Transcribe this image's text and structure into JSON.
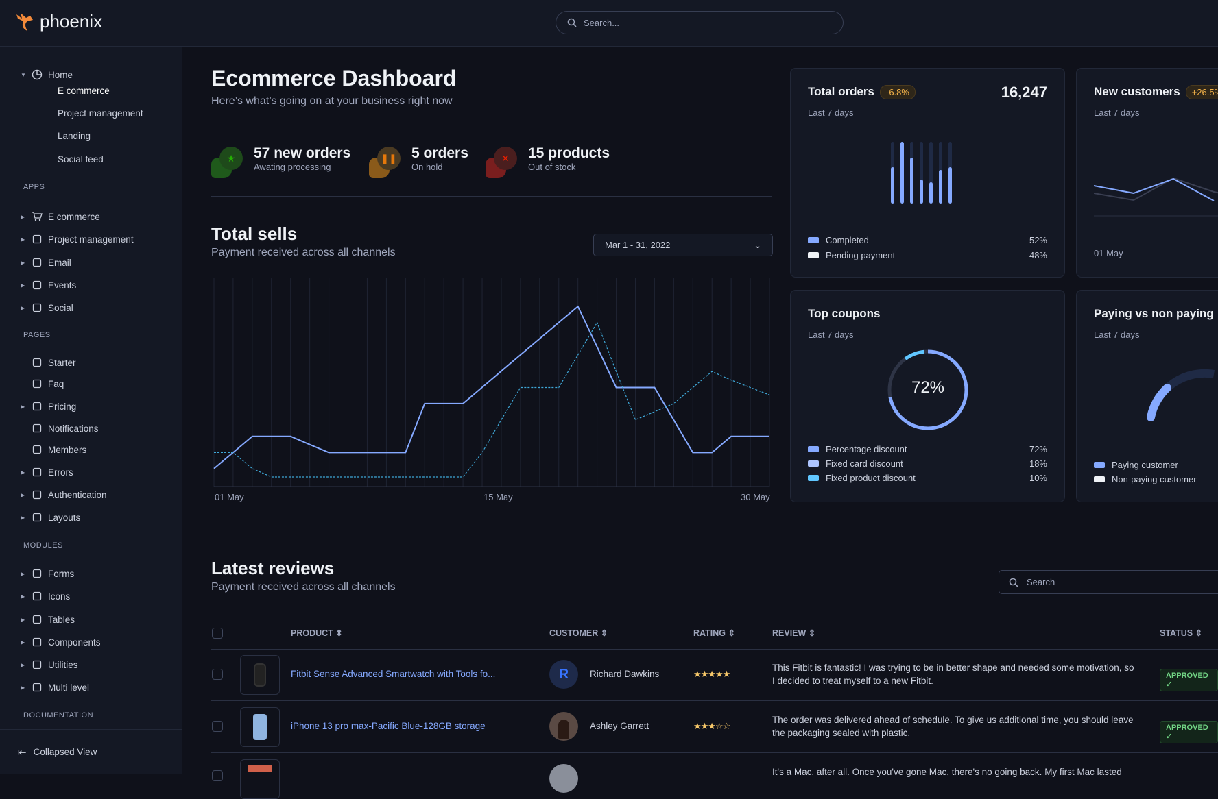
{
  "app": {
    "name": "phoenix"
  },
  "search": {
    "placeholder": "Search..."
  },
  "sidebar": {
    "home": {
      "label": "Home",
      "children": [
        "E commerce",
        "Project management",
        "Landing",
        "Social feed"
      ]
    },
    "sections": [
      {
        "title": "APPS",
        "items": [
          {
            "label": "E commerce",
            "icon": "cart-icon"
          },
          {
            "label": "Project management",
            "icon": "clipboard-icon"
          },
          {
            "label": "Email",
            "icon": "mail-icon"
          },
          {
            "label": "Events",
            "icon": "clipboard-icon"
          },
          {
            "label": "Social",
            "icon": "share-icon"
          }
        ]
      },
      {
        "title": "PAGES",
        "items": [
          {
            "label": "Starter",
            "icon": "compass-icon"
          },
          {
            "label": "Faq",
            "icon": "help-icon"
          },
          {
            "label": "Pricing",
            "icon": "tag-icon"
          },
          {
            "label": "Notifications",
            "icon": "bell-icon"
          },
          {
            "label": "Members",
            "icon": "users-icon"
          },
          {
            "label": "Errors",
            "icon": "alert-icon"
          },
          {
            "label": "Authentication",
            "icon": "lock-icon"
          },
          {
            "label": "Layouts",
            "icon": "layout-icon"
          }
        ]
      },
      {
        "title": "MODULES",
        "items": [
          {
            "label": "Forms",
            "icon": "file-icon"
          },
          {
            "label": "Icons",
            "icon": "grid-icon"
          },
          {
            "label": "Tables",
            "icon": "columns-icon"
          },
          {
            "label": "Components",
            "icon": "package-icon"
          },
          {
            "label": "Utilities",
            "icon": "tool-icon"
          },
          {
            "label": "Multi level",
            "icon": "layers-icon"
          }
        ]
      },
      {
        "title": "DOCUMENTATION",
        "items": []
      }
    ],
    "collapse_label": "Collapsed View"
  },
  "header": {
    "title": "Ecommerce Dashboard",
    "subtitle": "Here’s what’s going on at your business right now"
  },
  "stats": [
    {
      "value": "57 new orders",
      "label": "Awating processing",
      "color": "#25b003",
      "icon": "star-icon"
    },
    {
      "value": "5 orders",
      "label": "On hold",
      "color": "#e5780b",
      "icon": "pause-icon"
    },
    {
      "value": "15 products",
      "label": "Out of stock",
      "color": "#ec1f00",
      "icon": "x-icon"
    }
  ],
  "total_sells": {
    "title": "Total sells",
    "subtitle": "Payment received across all channels",
    "date_range": "Mar 1 - 31, 2022"
  },
  "cards": {
    "total_orders": {
      "title": "Total orders",
      "badge": "-6.8%",
      "value": "16,247",
      "subtitle": "Last 7 days",
      "bars": [
        0.59,
        1.0,
        0.75,
        0.39,
        0.34,
        0.54,
        0.59
      ],
      "legend": [
        {
          "label": "Completed",
          "value": "52%",
          "color": "#85a9ff"
        },
        {
          "label": "Pending payment",
          "value": "48%",
          "color": "#eff2f6"
        }
      ]
    },
    "new_customers": {
      "title": "New customers",
      "badge": "+26.5%",
      "subtitle": "Last 7 days",
      "x_label": "01 May"
    },
    "top_coupons": {
      "title": "Top coupons",
      "subtitle": "Last 7 days",
      "center": "72%",
      "legend": [
        {
          "label": "Percentage discount",
          "value": "72%",
          "color": "#85a9ff"
        },
        {
          "label": "Fixed card discount",
          "value": "18%",
          "color": "#adc5ff"
        },
        {
          "label": "Fixed product discount",
          "value": "10%",
          "color": "#60c6ff"
        }
      ]
    },
    "paying": {
      "title": "Paying vs non paying",
      "subtitle": "Last 7 days",
      "legend": [
        {
          "label": "Paying customer",
          "color": "#85a9ff"
        },
        {
          "label": "Non-paying customer",
          "color": "#eff2f6"
        }
      ]
    }
  },
  "chart_data": {
    "type": "line",
    "x": [
      "01 May",
      "02 May",
      "03 May",
      "04 May",
      "05 May",
      "06 May",
      "07 May",
      "08 May",
      "09 May",
      "10 May",
      "11 May",
      "12 May",
      "13 May",
      "14 May",
      "15 May",
      "16 May",
      "17 May",
      "18 May",
      "19 May",
      "20 May",
      "21 May",
      "22 May",
      "23 May",
      "24 May",
      "25 May",
      "26 May",
      "27 May",
      "28 May",
      "29 May",
      "30 May"
    ],
    "tick_labels": [
      "01 May",
      "15 May",
      "30 May"
    ],
    "ylim": [
      0,
      100
    ],
    "grid": "vertical",
    "series": [
      {
        "style": "solid",
        "color": "#85a9ff",
        "values": [
          8.5,
          16.7,
          25,
          25,
          25,
          20.8,
          16.7,
          16.7,
          16.7,
          16.7,
          16.7,
          41.8,
          41.8,
          41.8,
          50.1,
          58.4,
          66.7,
          75,
          83.3,
          91.5,
          70.8,
          50,
          50,
          50,
          33.4,
          16.7,
          16.7,
          25,
          25,
          25
        ]
      },
      {
        "style": "dashed",
        "color": "#3fa8d8",
        "values": [
          16.7,
          16.7,
          8.5,
          4.2,
          4.2,
          4.2,
          4.2,
          4.2,
          4.2,
          4.2,
          4.2,
          4.2,
          4.2,
          4.2,
          16.7,
          33.5,
          50,
          50,
          50,
          66.7,
          83.3,
          58.2,
          33.5,
          37.6,
          41.8,
          50,
          58.2,
          53.8,
          50,
          46.2
        ]
      }
    ]
  },
  "reviews": {
    "title": "Latest reviews",
    "subtitle": "Payment received across all channels",
    "search_placeholder": "Search",
    "columns": [
      "PRODUCT",
      "CUSTOMER",
      "RATING",
      "REVIEW",
      "STATUS"
    ],
    "rows": [
      {
        "product": "Fitbit Sense Advanced Smartwatch with Tools fo...",
        "customer": "Richard Dawkins",
        "initial": "R",
        "rating": "★★★★★",
        "review": "This Fitbit is fantastic! I was trying to be in better shape and needed some motivation, so I decided to treat myself to a new Fitbit.",
        "status": "APPROVED ✓"
      },
      {
        "product": "iPhone 13 pro max-Pacific Blue-128GB storage",
        "customer": "Ashley Garrett",
        "initial": "",
        "rating": "★★★☆☆",
        "review": "The order was delivered ahead of schedule. To give us additional time, you should leave the packaging sealed with plastic.",
        "status": "APPROVED ✓"
      },
      {
        "product": "",
        "customer": "",
        "initial": "",
        "rating": "",
        "review": "It's a Mac, after all. Once you've gone Mac, there's no going back. My first Mac lasted",
        "status": ""
      }
    ]
  }
}
